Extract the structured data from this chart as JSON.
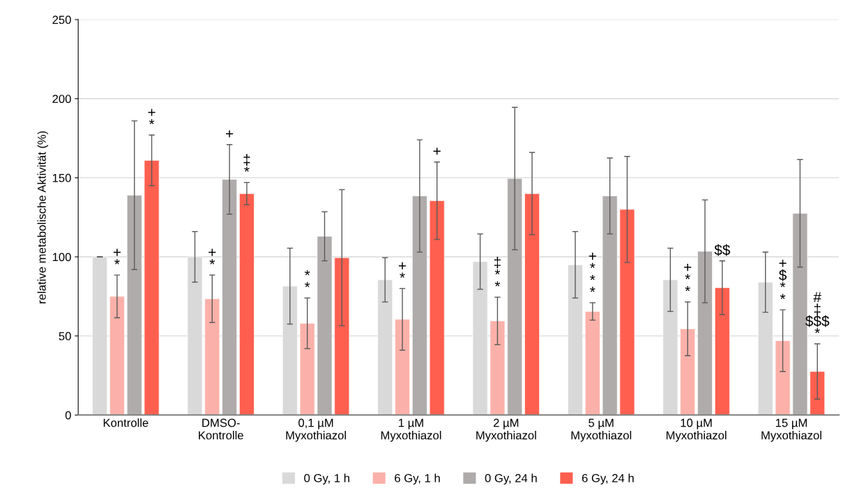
{
  "chart_data": {
    "type": "bar",
    "ylabel": "relative metabolische Aktivität (%)",
    "categories": [
      "Kontrolle",
      "DMSO-\nKontrolle",
      "0,1 µM\nMyxothiazol",
      "1 µM\nMyxothiazol",
      "2 µM\nMyxothiazol",
      "5 µM\nMyxothiazol",
      "10 µM\nMyxothiazol",
      "15 µM\nMyxothiazol"
    ],
    "series": [
      {
        "name": "0 Gy, 1 h",
        "color": "#d9d9d9",
        "values": [
          100,
          100,
          81.5,
          85.5,
          97,
          95,
          85.5,
          84
        ],
        "errors": [
          0,
          16,
          24,
          14,
          17.5,
          21,
          20,
          19
        ],
        "value_labels": [
          null,
          null,
          null,
          null,
          null,
          null,
          null,
          null
        ]
      },
      {
        "name": "6 Gy, 1 h",
        "color": "#fbb1a9",
        "values": [
          75,
          73.5,
          58,
          60.5,
          59.5,
          65.5,
          54.5,
          47
        ],
        "errors": [
          13.5,
          15,
          16,
          19.5,
          15,
          5.5,
          17,
          19.5
        ],
        "value_labels": [
          "+\n*",
          "+\n*",
          "*\n*",
          "+\n*",
          "‡\n*\n*",
          "+\n*\n*\n*",
          "+\n*\n*",
          "+\n$\n*\n*"
        ]
      },
      {
        "name": "0 Gy, 24 h",
        "color": "#afabab",
        "values": [
          139,
          149,
          113,
          138.5,
          149.5,
          138.5,
          103.5,
          127.5
        ],
        "errors": [
          47,
          22,
          15.5,
          35.5,
          45,
          24,
          32.5,
          34
        ],
        "value_labels": [
          null,
          "+",
          null,
          null,
          null,
          null,
          null,
          null
        ]
      },
      {
        "name": "6 Gy, 24 h",
        "color": "#ff5f4f",
        "values": [
          161,
          140,
          99.5,
          135.5,
          140,
          130,
          80.5,
          27.5
        ],
        "errors": [
          16,
          7,
          43,
          24.5,
          26,
          33.5,
          17,
          17.5
        ],
        "value_labels": [
          "+\n*",
          "‡\n*",
          null,
          "+",
          null,
          null,
          "$$",
          "#\n‡\n$$$\n*"
        ]
      }
    ],
    "ylim": [
      0,
      250
    ],
    "yticks": [
      0,
      50,
      100,
      150,
      200,
      250
    ],
    "grid": "y",
    "legend": "bottom"
  }
}
